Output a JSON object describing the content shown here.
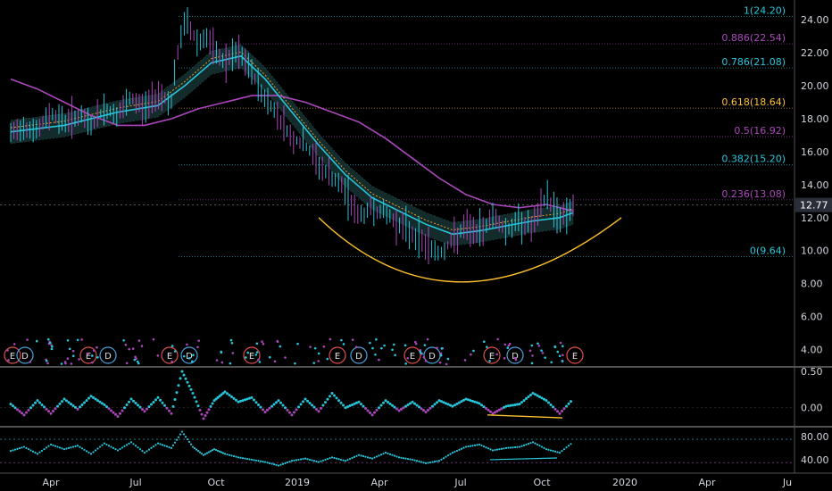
{
  "chart_data": {
    "type": "line",
    "price_axis": {
      "ticks": [
        "24.00",
        "22.00",
        "20.00",
        "18.00",
        "16.00",
        "14.00",
        "12.00",
        "10.00",
        "8.00",
        "6.00",
        "4.00"
      ],
      "ylim": [
        3.0,
        25.2
      ]
    },
    "last_price": "12.77",
    "time_axis": {
      "labels": [
        "Apr",
        "Jul",
        "Oct",
        "2019",
        "Apr",
        "Jul",
        "Oct",
        "2020",
        "Apr",
        "Ju"
      ]
    },
    "fib_levels": [
      {
        "label": "1(24.20)",
        "value": 24.2,
        "color": "#26c6da"
      },
      {
        "label": "0.886(22.54)",
        "value": 22.54,
        "color": "#ab47bc"
      },
      {
        "label": "0.786(21.08)",
        "value": 21.08,
        "color": "#26c6da"
      },
      {
        "label": "0.618(18.64)",
        "value": 18.64,
        "color": "#fbc02d"
      },
      {
        "label": "0.5(16.92)",
        "value": 16.92,
        "color": "#ab47bc"
      },
      {
        "label": "0.382(15.20)",
        "value": 15.2,
        "color": "#26c6da"
      },
      {
        "label": "0.236(13.08)",
        "value": 13.08,
        "color": "#ab47bc"
      },
      {
        "label": "0(9.64)",
        "value": 9.64,
        "color": "#26c6da"
      }
    ],
    "price_series": [
      {
        "t": 0.0,
        "v": 17.0
      },
      {
        "t": 0.5,
        "v": 17.6
      },
      {
        "t": 1.0,
        "v": 17.2
      },
      {
        "t": 1.5,
        "v": 18.4
      },
      {
        "t": 2.0,
        "v": 17.8
      },
      {
        "t": 2.5,
        "v": 18.2
      },
      {
        "t": 3.0,
        "v": 17.6
      },
      {
        "t": 3.5,
        "v": 18.6
      },
      {
        "t": 4.0,
        "v": 18.2
      },
      {
        "t": 4.5,
        "v": 19.2
      },
      {
        "t": 5.0,
        "v": 18.6
      },
      {
        "t": 5.5,
        "v": 19.6
      },
      {
        "t": 6.0,
        "v": 19.0
      },
      {
        "t": 6.2,
        "v": 21.6
      },
      {
        "t": 6.5,
        "v": 24.0
      },
      {
        "t": 7.0,
        "v": 22.6
      },
      {
        "t": 7.3,
        "v": 23.0
      },
      {
        "t": 7.6,
        "v": 22.0
      },
      {
        "t": 8.0,
        "v": 21.4
      },
      {
        "t": 8.5,
        "v": 22.0
      },
      {
        "t": 9.0,
        "v": 20.8
      },
      {
        "t": 9.5,
        "v": 19.2
      },
      {
        "t": 10.0,
        "v": 18.2
      },
      {
        "t": 10.5,
        "v": 16.8
      },
      {
        "t": 11.0,
        "v": 16.4
      },
      {
        "t": 11.5,
        "v": 15.2
      },
      {
        "t": 12.0,
        "v": 14.4
      },
      {
        "t": 12.5,
        "v": 13.6
      },
      {
        "t": 13.0,
        "v": 12.0
      },
      {
        "t": 13.5,
        "v": 12.6
      },
      {
        "t": 14.0,
        "v": 12.2
      },
      {
        "t": 14.5,
        "v": 11.6
      },
      {
        "t": 15.0,
        "v": 11.0
      },
      {
        "t": 15.5,
        "v": 10.4
      },
      {
        "t": 16.0,
        "v": 9.8
      },
      {
        "t": 16.5,
        "v": 10.6
      },
      {
        "t": 17.0,
        "v": 11.4
      },
      {
        "t": 17.5,
        "v": 11.0
      },
      {
        "t": 18.0,
        "v": 12.2
      },
      {
        "t": 18.5,
        "v": 11.2
      },
      {
        "t": 19.0,
        "v": 11.8
      },
      {
        "t": 19.5,
        "v": 11.4
      },
      {
        "t": 20.0,
        "v": 13.4
      },
      {
        "t": 20.3,
        "v": 12.4
      },
      {
        "t": 20.6,
        "v": 12.0
      },
      {
        "t": 21.0,
        "v": 12.77
      }
    ],
    "ma_fast": [
      {
        "t": 0.0,
        "v": 17.2
      },
      {
        "t": 2.0,
        "v": 17.6
      },
      {
        "t": 4.0,
        "v": 18.4
      },
      {
        "t": 5.5,
        "v": 18.8
      },
      {
        "t": 6.5,
        "v": 20.0
      },
      {
        "t": 7.5,
        "v": 21.4
      },
      {
        "t": 8.6,
        "v": 21.8
      },
      {
        "t": 9.5,
        "v": 20.4
      },
      {
        "t": 10.5,
        "v": 18.4
      },
      {
        "t": 11.5,
        "v": 16.4
      },
      {
        "t": 12.5,
        "v": 14.6
      },
      {
        "t": 13.5,
        "v": 13.2
      },
      {
        "t": 14.5,
        "v": 12.4
      },
      {
        "t": 15.5,
        "v": 11.6
      },
      {
        "t": 16.5,
        "v": 11.0
      },
      {
        "t": 17.5,
        "v": 11.2
      },
      {
        "t": 18.5,
        "v": 11.5
      },
      {
        "t": 19.5,
        "v": 11.8
      },
      {
        "t": 20.5,
        "v": 12.0
      },
      {
        "t": 21.0,
        "v": 12.3
      }
    ],
    "ma_slow": [
      {
        "t": 0.0,
        "v": 20.4
      },
      {
        "t": 1.0,
        "v": 19.8
      },
      {
        "t": 2.0,
        "v": 19.0
      },
      {
        "t": 3.0,
        "v": 18.2
      },
      {
        "t": 4.0,
        "v": 17.6
      },
      {
        "t": 5.0,
        "v": 17.6
      },
      {
        "t": 6.0,
        "v": 18.0
      },
      {
        "t": 7.0,
        "v": 18.6
      },
      {
        "t": 8.0,
        "v": 19.0
      },
      {
        "t": 9.0,
        "v": 19.4
      },
      {
        "t": 10.0,
        "v": 19.4
      },
      {
        "t": 11.0,
        "v": 19.0
      },
      {
        "t": 12.0,
        "v": 18.4
      },
      {
        "t": 13.0,
        "v": 17.8
      },
      {
        "t": 14.0,
        "v": 16.8
      },
      {
        "t": 15.0,
        "v": 15.6
      },
      {
        "t": 16.0,
        "v": 14.4
      },
      {
        "t": 17.0,
        "v": 13.4
      },
      {
        "t": 18.0,
        "v": 12.8
      },
      {
        "t": 19.0,
        "v": 12.6
      },
      {
        "t": 20.0,
        "v": 12.8
      },
      {
        "t": 21.0,
        "v": 12.4
      }
    ],
    "arc": {
      "t_start": 11.5,
      "t_mid": 16.5,
      "t_end": 22.8,
      "v_start": 12.0,
      "v_mid": 8.1,
      "v_end": 12.0
    },
    "earnings_events": [
      "E",
      "D",
      "E",
      "D",
      "E",
      "D",
      "E",
      "E",
      "D",
      "E",
      "D",
      "E",
      "D",
      "E"
    ],
    "osc1_axis": {
      "ticks": [
        "0.50",
        "0.00"
      ],
      "ylim": [
        -0.25,
        0.55
      ]
    },
    "osc1": [
      {
        "t": 0.0,
        "v": 0.05
      },
      {
        "t": 0.5,
        "v": -0.1
      },
      {
        "t": 1.0,
        "v": 0.1
      },
      {
        "t": 1.5,
        "v": -0.08
      },
      {
        "t": 2.0,
        "v": 0.12
      },
      {
        "t": 2.5,
        "v": -0.02
      },
      {
        "t": 3.0,
        "v": 0.16
      },
      {
        "t": 3.5,
        "v": 0.04
      },
      {
        "t": 4.0,
        "v": -0.12
      },
      {
        "t": 4.5,
        "v": 0.12
      },
      {
        "t": 5.0,
        "v": -0.05
      },
      {
        "t": 5.5,
        "v": 0.14
      },
      {
        "t": 6.0,
        "v": -0.08
      },
      {
        "t": 6.4,
        "v": 0.5
      },
      {
        "t": 6.8,
        "v": 0.2
      },
      {
        "t": 7.2,
        "v": -0.15
      },
      {
        "t": 7.6,
        "v": 0.1
      },
      {
        "t": 8.0,
        "v": 0.22
      },
      {
        "t": 8.5,
        "v": 0.08
      },
      {
        "t": 9.0,
        "v": 0.14
      },
      {
        "t": 9.5,
        "v": -0.06
      },
      {
        "t": 10.0,
        "v": 0.1
      },
      {
        "t": 10.5,
        "v": -0.1
      },
      {
        "t": 11.0,
        "v": 0.12
      },
      {
        "t": 11.5,
        "v": -0.05
      },
      {
        "t": 12.0,
        "v": 0.2
      },
      {
        "t": 12.5,
        "v": 0.0
      },
      {
        "t": 13.0,
        "v": 0.08
      },
      {
        "t": 13.5,
        "v": -0.1
      },
      {
        "t": 14.0,
        "v": 0.1
      },
      {
        "t": 14.5,
        "v": -0.04
      },
      {
        "t": 15.0,
        "v": 0.08
      },
      {
        "t": 15.5,
        "v": -0.06
      },
      {
        "t": 16.0,
        "v": 0.1
      },
      {
        "t": 16.5,
        "v": 0.02
      },
      {
        "t": 17.0,
        "v": 0.12
      },
      {
        "t": 17.5,
        "v": 0.06
      },
      {
        "t": 18.0,
        "v": -0.08
      },
      {
        "t": 18.5,
        "v": 0.02
      },
      {
        "t": 19.0,
        "v": 0.05
      },
      {
        "t": 19.5,
        "v": 0.2
      },
      {
        "t": 20.0,
        "v": 0.1
      },
      {
        "t": 20.5,
        "v": -0.08
      },
      {
        "t": 21.0,
        "v": 0.12
      }
    ],
    "osc1_divergence": {
      "t1": 17.8,
      "v1": -0.1,
      "t2": 20.6,
      "v2": -0.14
    },
    "osc2_axis": {
      "ticks": [
        "80.00",
        "40.00"
      ],
      "ylim": [
        20,
        95
      ]
    },
    "osc2_bands": [
      75,
      35
    ],
    "osc2": [
      {
        "t": 0.0,
        "v": 55
      },
      {
        "t": 0.5,
        "v": 62
      },
      {
        "t": 1.0,
        "v": 50
      },
      {
        "t": 1.5,
        "v": 66
      },
      {
        "t": 2.0,
        "v": 58
      },
      {
        "t": 2.5,
        "v": 64
      },
      {
        "t": 3.0,
        "v": 50
      },
      {
        "t": 3.5,
        "v": 68
      },
      {
        "t": 4.0,
        "v": 56
      },
      {
        "t": 4.5,
        "v": 70
      },
      {
        "t": 5.0,
        "v": 52
      },
      {
        "t": 5.5,
        "v": 68
      },
      {
        "t": 6.0,
        "v": 60
      },
      {
        "t": 6.4,
        "v": 88
      },
      {
        "t": 6.8,
        "v": 62
      },
      {
        "t": 7.2,
        "v": 48
      },
      {
        "t": 7.6,
        "v": 58
      },
      {
        "t": 8.0,
        "v": 50
      },
      {
        "t": 8.5,
        "v": 44
      },
      {
        "t": 9.0,
        "v": 40
      },
      {
        "t": 9.5,
        "v": 36
      },
      {
        "t": 10.0,
        "v": 30
      },
      {
        "t": 10.5,
        "v": 38
      },
      {
        "t": 11.0,
        "v": 42
      },
      {
        "t": 11.5,
        "v": 36
      },
      {
        "t": 12.0,
        "v": 44
      },
      {
        "t": 12.5,
        "v": 38
      },
      {
        "t": 13.0,
        "v": 48
      },
      {
        "t": 13.5,
        "v": 42
      },
      {
        "t": 14.0,
        "v": 52
      },
      {
        "t": 14.5,
        "v": 44
      },
      {
        "t": 15.0,
        "v": 40
      },
      {
        "t": 15.5,
        "v": 34
      },
      {
        "t": 16.0,
        "v": 38
      },
      {
        "t": 16.5,
        "v": 52
      },
      {
        "t": 17.0,
        "v": 62
      },
      {
        "t": 17.5,
        "v": 66
      },
      {
        "t": 18.0,
        "v": 56
      },
      {
        "t": 18.5,
        "v": 60
      },
      {
        "t": 19.0,
        "v": 62
      },
      {
        "t": 19.5,
        "v": 70
      },
      {
        "t": 20.0,
        "v": 58
      },
      {
        "t": 20.5,
        "v": 52
      },
      {
        "t": 21.0,
        "v": 70
      }
    ],
    "osc2_divergence": {
      "t1": 17.9,
      "v1": 40,
      "t2": 20.4,
      "v2": 43
    },
    "colors": {
      "background": "#000000",
      "price": "#ab47bc",
      "ma_fast": "#26c6da",
      "ma_slow": "#ab47bc",
      "arc": "#fbc02d",
      "band": "#1b3a3a",
      "grid": "#1e2a2e"
    }
  }
}
